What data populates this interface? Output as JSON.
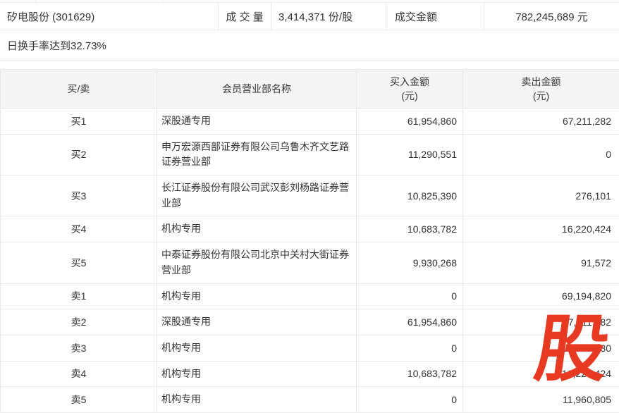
{
  "page": {
    "border_color": "#e9e9eb",
    "header_bg": "#f5f5f6",
    "text_color": "#333333"
  },
  "summary": {
    "stock": "矽电股份 (301629)",
    "volume_label": "成 交 量",
    "volume_value": "3,414,371 份/股",
    "amount_label": "成交金额",
    "amount_value": "782,245,689 元",
    "note": "日换手率达到32.73%"
  },
  "table": {
    "headers": {
      "side": "买/卖",
      "branch": "会员营业部名称",
      "buy_line1": "买入金额",
      "buy_line2": "(元)",
      "sell_line1": "卖出金额",
      "sell_line2": "(元)"
    },
    "rows": [
      {
        "side": "买1",
        "branch": "深股通专用",
        "buy": "61,954,860",
        "sell": "67,211,282"
      },
      {
        "side": "买2",
        "branch": "申万宏源西部证券有限公司乌鲁木齐文艺路证券营业部",
        "buy": "11,290,551",
        "sell": "0"
      },
      {
        "side": "买3",
        "branch": "长江证券股份有限公司武汉彭刘杨路证券营业部",
        "buy": "10,825,390",
        "sell": "276,101"
      },
      {
        "side": "买4",
        "branch": "机构专用",
        "buy": "10,683,782",
        "sell": "16,220,424"
      },
      {
        "side": "买5",
        "branch": "中泰证券股份有限公司北京中关村大街证券营业部",
        "buy": "9,930,268",
        "sell": "91,572"
      },
      {
        "side": "卖1",
        "branch": "机构专用",
        "buy": "0",
        "sell": "69,194,820"
      },
      {
        "side": "卖2",
        "branch": "深股通专用",
        "buy": "61,954,860",
        "sell": "67,211,282"
      },
      {
        "side": "卖3",
        "branch": "机构专用",
        "buy": "0",
        "sell": "18,970,780"
      },
      {
        "side": "卖4",
        "branch": "机构专用",
        "buy": "10,683,782",
        "sell": "16,220,424"
      },
      {
        "side": "卖5",
        "branch": "机构专用",
        "buy": "0",
        "sell": "11,960,805"
      }
    ]
  },
  "watermark": {
    "char": "股",
    "color": "#e83a23"
  }
}
